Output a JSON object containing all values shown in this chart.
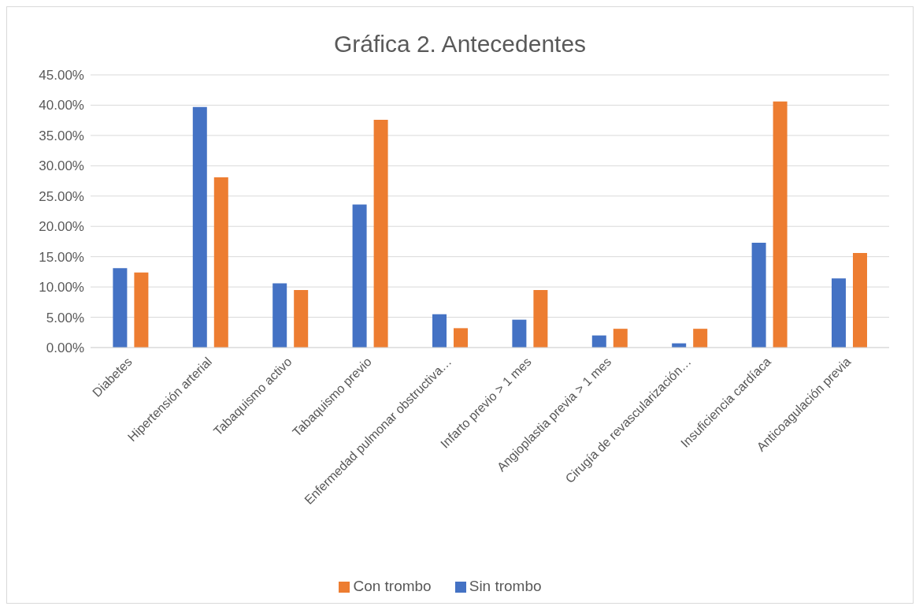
{
  "chart_data": {
    "type": "bar",
    "title": "Gráfica 2. Antecedentes",
    "categories": [
      "Diabetes",
      "Hipertensión arterial",
      "Tabaquismo activo",
      "Tabaquismo previo",
      "Enfermedad pulmonar obstructiva…",
      "Infarto previo > 1 mes",
      "Angioplastia previa > 1 mes",
      "Cirugía de revascularización…",
      "Insuficiencia cardíaca",
      "Anticoagulación previa"
    ],
    "series": [
      {
        "name": "Sin trombo",
        "color": "#4472c4",
        "values": [
          13.1,
          39.7,
          10.6,
          23.6,
          5.5,
          4.6,
          2.0,
          0.7,
          17.3,
          11.4
        ]
      },
      {
        "name": "Con trombo",
        "color": "#ed7d31",
        "values": [
          12.4,
          28.1,
          9.5,
          37.6,
          3.2,
          9.5,
          3.1,
          3.1,
          40.6,
          15.6
        ]
      }
    ],
    "ylim": [
      0,
      45
    ],
    "yticks": [
      {
        "value": 0,
        "label": "0.00%"
      },
      {
        "value": 5,
        "label": "5.00%"
      },
      {
        "value": 10,
        "label": "10.00%"
      },
      {
        "value": 15,
        "label": "15.00%"
      },
      {
        "value": 20,
        "label": "20.00%"
      },
      {
        "value": 25,
        "label": "25.00%"
      },
      {
        "value": 30,
        "label": "30.00%"
      },
      {
        "value": 35,
        "label": "35.00%"
      },
      {
        "value": 40,
        "label": "40.00%"
      },
      {
        "value": 45,
        "label": "45.00%"
      }
    ],
    "grid": "y",
    "legend": "bottom"
  }
}
